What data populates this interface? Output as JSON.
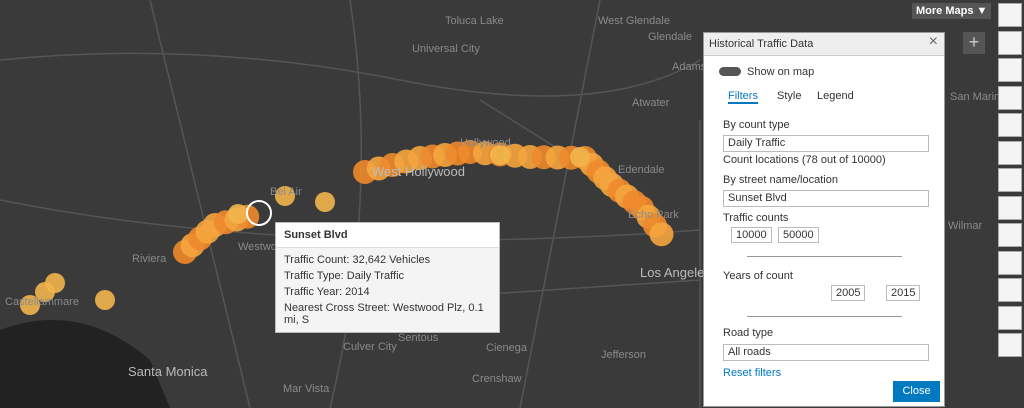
{
  "map": {
    "labels": [
      "Toluca Lake",
      "Universal City",
      "West Glendale",
      "Glendale",
      "Adams Hill",
      "Atwater",
      "San Marino",
      "West Hollywood",
      "Hollywood",
      "Edendale",
      "Echo Park",
      "Bel Air",
      "Westwood",
      "Riviera",
      "Castellammare",
      "Los Angeles",
      "Santa Monica",
      "Culver City",
      "Sentous",
      "Cienega",
      "Jefferson",
      "Crenshaw",
      "Mar Vista",
      "Wilmar"
    ],
    "more_maps": "More Maps"
  },
  "popup": {
    "title": "Sunset Blvd",
    "rows": [
      "Traffic Count: 32,642 Vehicles",
      "Traffic Type: Daily Traffic",
      "Traffic Year: 2014",
      "Nearest Cross Street: Westwood Plz, 0.1 mi, S"
    ]
  },
  "panel": {
    "title": "Historical Traffic Data",
    "toggle": "Show on map",
    "tabs": [
      "Filters",
      "Style",
      "Legend"
    ],
    "count_type_label": "By count type",
    "count_type": "Daily Traffic",
    "count_locations": "Count locations (78 out of 10000)",
    "street_label": "By street name/location",
    "street": "Sunset Blvd",
    "traffic_label": "Traffic counts",
    "traffic_min": 10000,
    "traffic_max": 50000,
    "years_label": "Years of count",
    "year_min": 2005,
    "year_max": 2015,
    "road_label": "Road type",
    "road": "All roads",
    "reset": "Reset filters",
    "close": "Close"
  }
}
